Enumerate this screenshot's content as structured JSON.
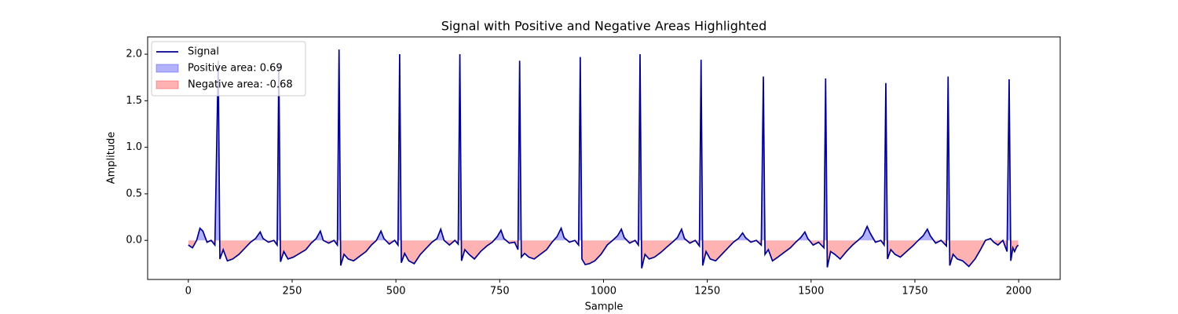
{
  "chart_data": {
    "type": "line",
    "title": "Signal with Positive and Negative Areas Highlighted",
    "xlabel": "Sample",
    "ylabel": "Amplitude",
    "x": [
      0,
      10,
      20,
      28,
      35,
      45,
      55,
      64,
      72,
      76,
      84,
      94,
      107,
      122,
      137,
      150,
      162,
      173,
      180,
      193,
      206,
      214,
      218,
      222,
      230,
      240,
      253,
      268,
      283,
      296,
      308,
      318,
      325,
      338,
      351,
      359,
      363,
      367,
      375,
      385,
      398,
      413,
      428,
      441,
      453,
      464,
      471,
      484,
      497,
      505,
      509,
      513,
      521,
      531,
      544,
      559,
      574,
      587,
      599,
      608,
      616,
      629,
      642,
      650,
      654,
      658,
      666,
      676,
      689,
      704,
      719,
      732,
      744,
      753,
      760,
      773,
      786,
      794,
      798,
      802,
      810,
      820,
      833,
      848,
      863,
      876,
      888,
      898,
      905,
      918,
      931,
      940,
      944,
      948,
      956,
      966,
      979,
      994,
      1009,
      1022,
      1034,
      1043,
      1050,
      1063,
      1076,
      1084,
      1088,
      1092,
      1100,
      1110,
      1123,
      1138,
      1153,
      1166,
      1178,
      1188,
      1195,
      1208,
      1221,
      1231,
      1235,
      1239,
      1247,
      1257,
      1270,
      1285,
      1300,
      1313,
      1325,
      1335,
      1342,
      1355,
      1368,
      1380,
      1385,
      1389,
      1397,
      1407,
      1420,
      1435,
      1450,
      1463,
      1475,
      1485,
      1492,
      1505,
      1518,
      1531,
      1535,
      1539,
      1547,
      1557,
      1570,
      1585,
      1600,
      1613,
      1625,
      1635,
      1642,
      1655,
      1668,
      1676,
      1680,
      1684,
      1692,
      1702,
      1715,
      1730,
      1745,
      1758,
      1770,
      1780,
      1787,
      1800,
      1813,
      1826,
      1830,
      1834,
      1842,
      1852,
      1865,
      1880,
      1895,
      1908,
      1920,
      1932,
      1940,
      1950,
      1962,
      1972,
      1977,
      1981,
      1986,
      1990,
      1995,
      1999
    ],
    "series": [
      {
        "name": "Signal",
        "color": "#00008b",
        "values": [
          -0.05,
          -0.08,
          0.0,
          0.13,
          0.1,
          -0.02,
          0.0,
          -0.05,
          1.93,
          -0.2,
          -0.1,
          -0.22,
          -0.2,
          -0.15,
          -0.08,
          -0.02,
          0.02,
          0.09,
          0.02,
          -0.02,
          0.0,
          -0.05,
          1.9,
          -0.23,
          -0.12,
          -0.2,
          -0.18,
          -0.14,
          -0.1,
          -0.03,
          0.02,
          0.1,
          0.0,
          -0.03,
          0.0,
          -0.05,
          2.05,
          -0.27,
          -0.15,
          -0.2,
          -0.22,
          -0.17,
          -0.12,
          -0.05,
          0.0,
          0.1,
          0.02,
          -0.04,
          0.0,
          -0.05,
          2.0,
          -0.24,
          -0.14,
          -0.22,
          -0.25,
          -0.15,
          -0.08,
          -0.02,
          0.02,
          0.12,
          0.0,
          -0.05,
          0.0,
          -0.04,
          2.0,
          -0.22,
          -0.1,
          -0.15,
          -0.2,
          -0.12,
          -0.06,
          -0.02,
          0.04,
          0.11,
          0.02,
          -0.03,
          -0.02,
          -0.1,
          1.93,
          -0.18,
          -0.14,
          -0.18,
          -0.2,
          -0.15,
          -0.1,
          -0.02,
          0.04,
          0.13,
          0.03,
          -0.02,
          0.0,
          -0.05,
          1.97,
          -0.2,
          -0.26,
          -0.25,
          -0.22,
          -0.15,
          -0.05,
          0.0,
          0.05,
          0.12,
          0.03,
          -0.03,
          0.0,
          -0.05,
          2.0,
          -0.3,
          -0.15,
          -0.2,
          -0.18,
          -0.13,
          -0.07,
          -0.02,
          0.03,
          0.12,
          0.02,
          -0.03,
          0.0,
          -0.06,
          1.94,
          -0.27,
          -0.12,
          -0.2,
          -0.22,
          -0.15,
          -0.08,
          -0.02,
          0.02,
          0.08,
          0.03,
          -0.02,
          0.0,
          -0.05,
          1.76,
          -0.15,
          -0.1,
          -0.22,
          -0.18,
          -0.13,
          -0.08,
          -0.02,
          0.03,
          0.09,
          0.02,
          -0.05,
          -0.02,
          -0.08,
          1.74,
          -0.29,
          -0.12,
          -0.15,
          -0.2,
          -0.12,
          -0.05,
          0.0,
          0.05,
          0.15,
          0.08,
          -0.02,
          0.0,
          -0.05,
          1.69,
          -0.2,
          -0.1,
          -0.15,
          -0.18,
          -0.12,
          -0.06,
          0.0,
          0.05,
          0.12,
          0.05,
          -0.03,
          0.0,
          -0.06,
          1.76,
          -0.27,
          -0.15,
          -0.2,
          -0.22,
          -0.28,
          -0.2,
          -0.1,
          0.0,
          0.02,
          -0.02,
          -0.05,
          0.0,
          -0.12,
          1.73,
          -0.22,
          -0.08,
          -0.12,
          -0.07,
          -0.05
        ]
      }
    ],
    "fills": [
      {
        "name": "Positive area: 0.69",
        "color": "#0000ff",
        "where": "above"
      },
      {
        "name": "Negative area: -0.68",
        "color": "#ff0000",
        "where": "below"
      }
    ],
    "xlim": [
      -98,
      2100
    ],
    "xticks": [
      0,
      250,
      500,
      750,
      1000,
      1250,
      1500,
      1750,
      2000
    ],
    "ylim": [
      -0.42,
      2.186
    ],
    "yticks": [
      {
        "value": 0,
        "label": "0.0"
      },
      0.5,
      {
        "value": 1,
        "label": "1.0"
      },
      1.5,
      {
        "value": 2,
        "label": "2.0"
      }
    ],
    "legend": "upper left"
  }
}
